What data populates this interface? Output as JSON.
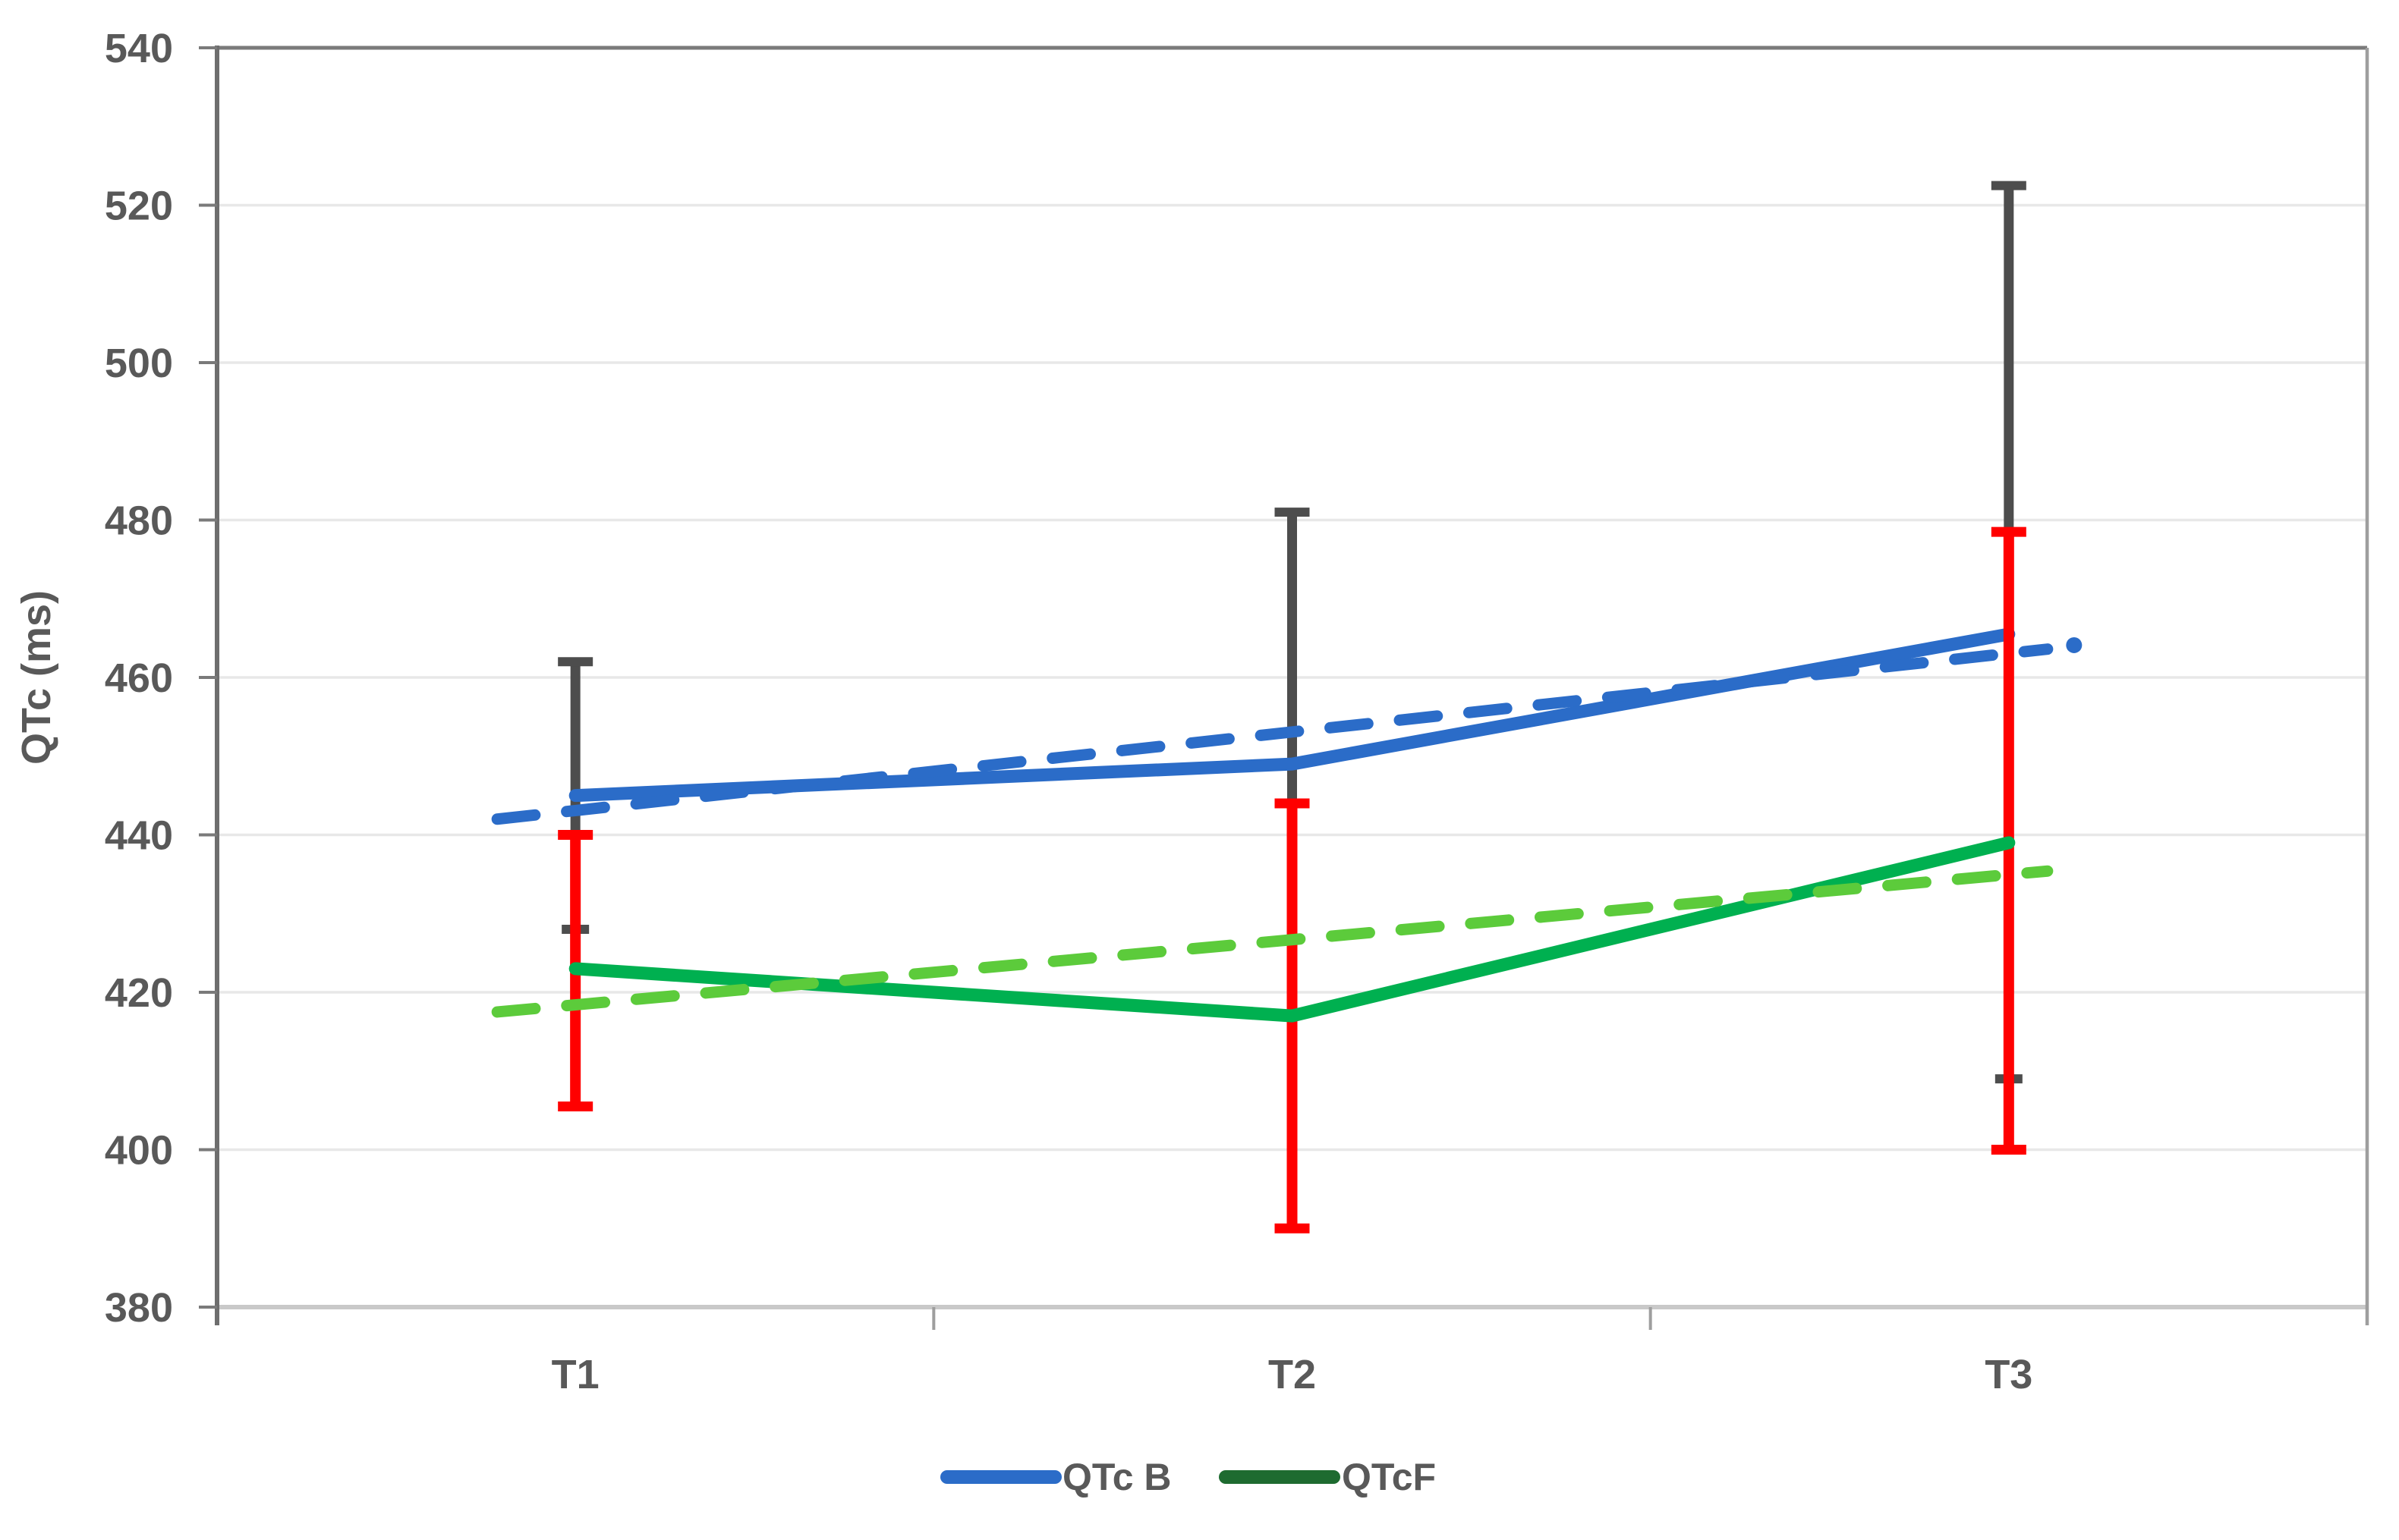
{
  "chart_data": {
    "type": "line",
    "title": "",
    "ylabel": "QTc (ms)",
    "xlabel": "",
    "categories": [
      "T1",
      "T2",
      "T3"
    ],
    "ylim": [
      380,
      540
    ],
    "ytick_step": 20,
    "yticks": [
      "380",
      "400",
      "420",
      "440",
      "460",
      "480",
      "500",
      "520",
      "540"
    ],
    "grid": "horizontal-on",
    "legend_position": "bottom-center",
    "series": [
      {
        "name": "QTc B",
        "values": [
          445,
          449,
          465.5
        ],
        "color": "#2B6CC8",
        "line_style": "solid",
        "error_bars": {
          "color": "#4D4D4D",
          "bars": [
            {
              "low": 428,
              "high": 462,
              "cap_low": "small",
              "cap_high": "wide"
            },
            {
              "low": 444.5,
              "high": 481,
              "cap_low": "none",
              "cap_high": "wide"
            },
            {
              "low": 409,
              "high": 522.5,
              "cap_low": "small",
              "cap_high": "wide"
            }
          ]
        },
        "trendline": {
          "style": "dashed",
          "color": "#2B6CC8",
          "start_value": 442,
          "end_value": 463.6,
          "end_dot_value": 464.1
        }
      },
      {
        "name": "QTcF",
        "values": [
          423,
          417,
          439
        ],
        "color": "#00B050",
        "legend_color": "#1E6B30",
        "line_style": "solid",
        "error_bars": {
          "color": "#FF0000",
          "bars": [
            {
              "low": 405.5,
              "high": 440,
              "cap_low": "wide",
              "cap_high": "wide"
            },
            {
              "low": 390,
              "high": 444,
              "cap_low": "wide",
              "cap_high": "wide"
            },
            {
              "low": 400,
              "high": 478.5,
              "cap_low": "wide",
              "cap_high": "wide"
            }
          ]
        },
        "trendline": {
          "style": "dashed",
          "color": "#5CCB3B",
          "start_value": 417.5,
          "end_value": 435.4
        }
      }
    ],
    "axis_colors": {
      "text": "#595959",
      "grid": "#E8E8E8",
      "axis_left": "#6E6E6E",
      "axis_top": "#7A7A7A",
      "axis_bottom": "#C9C9C9",
      "axis_right": "#9E9E9E"
    }
  }
}
